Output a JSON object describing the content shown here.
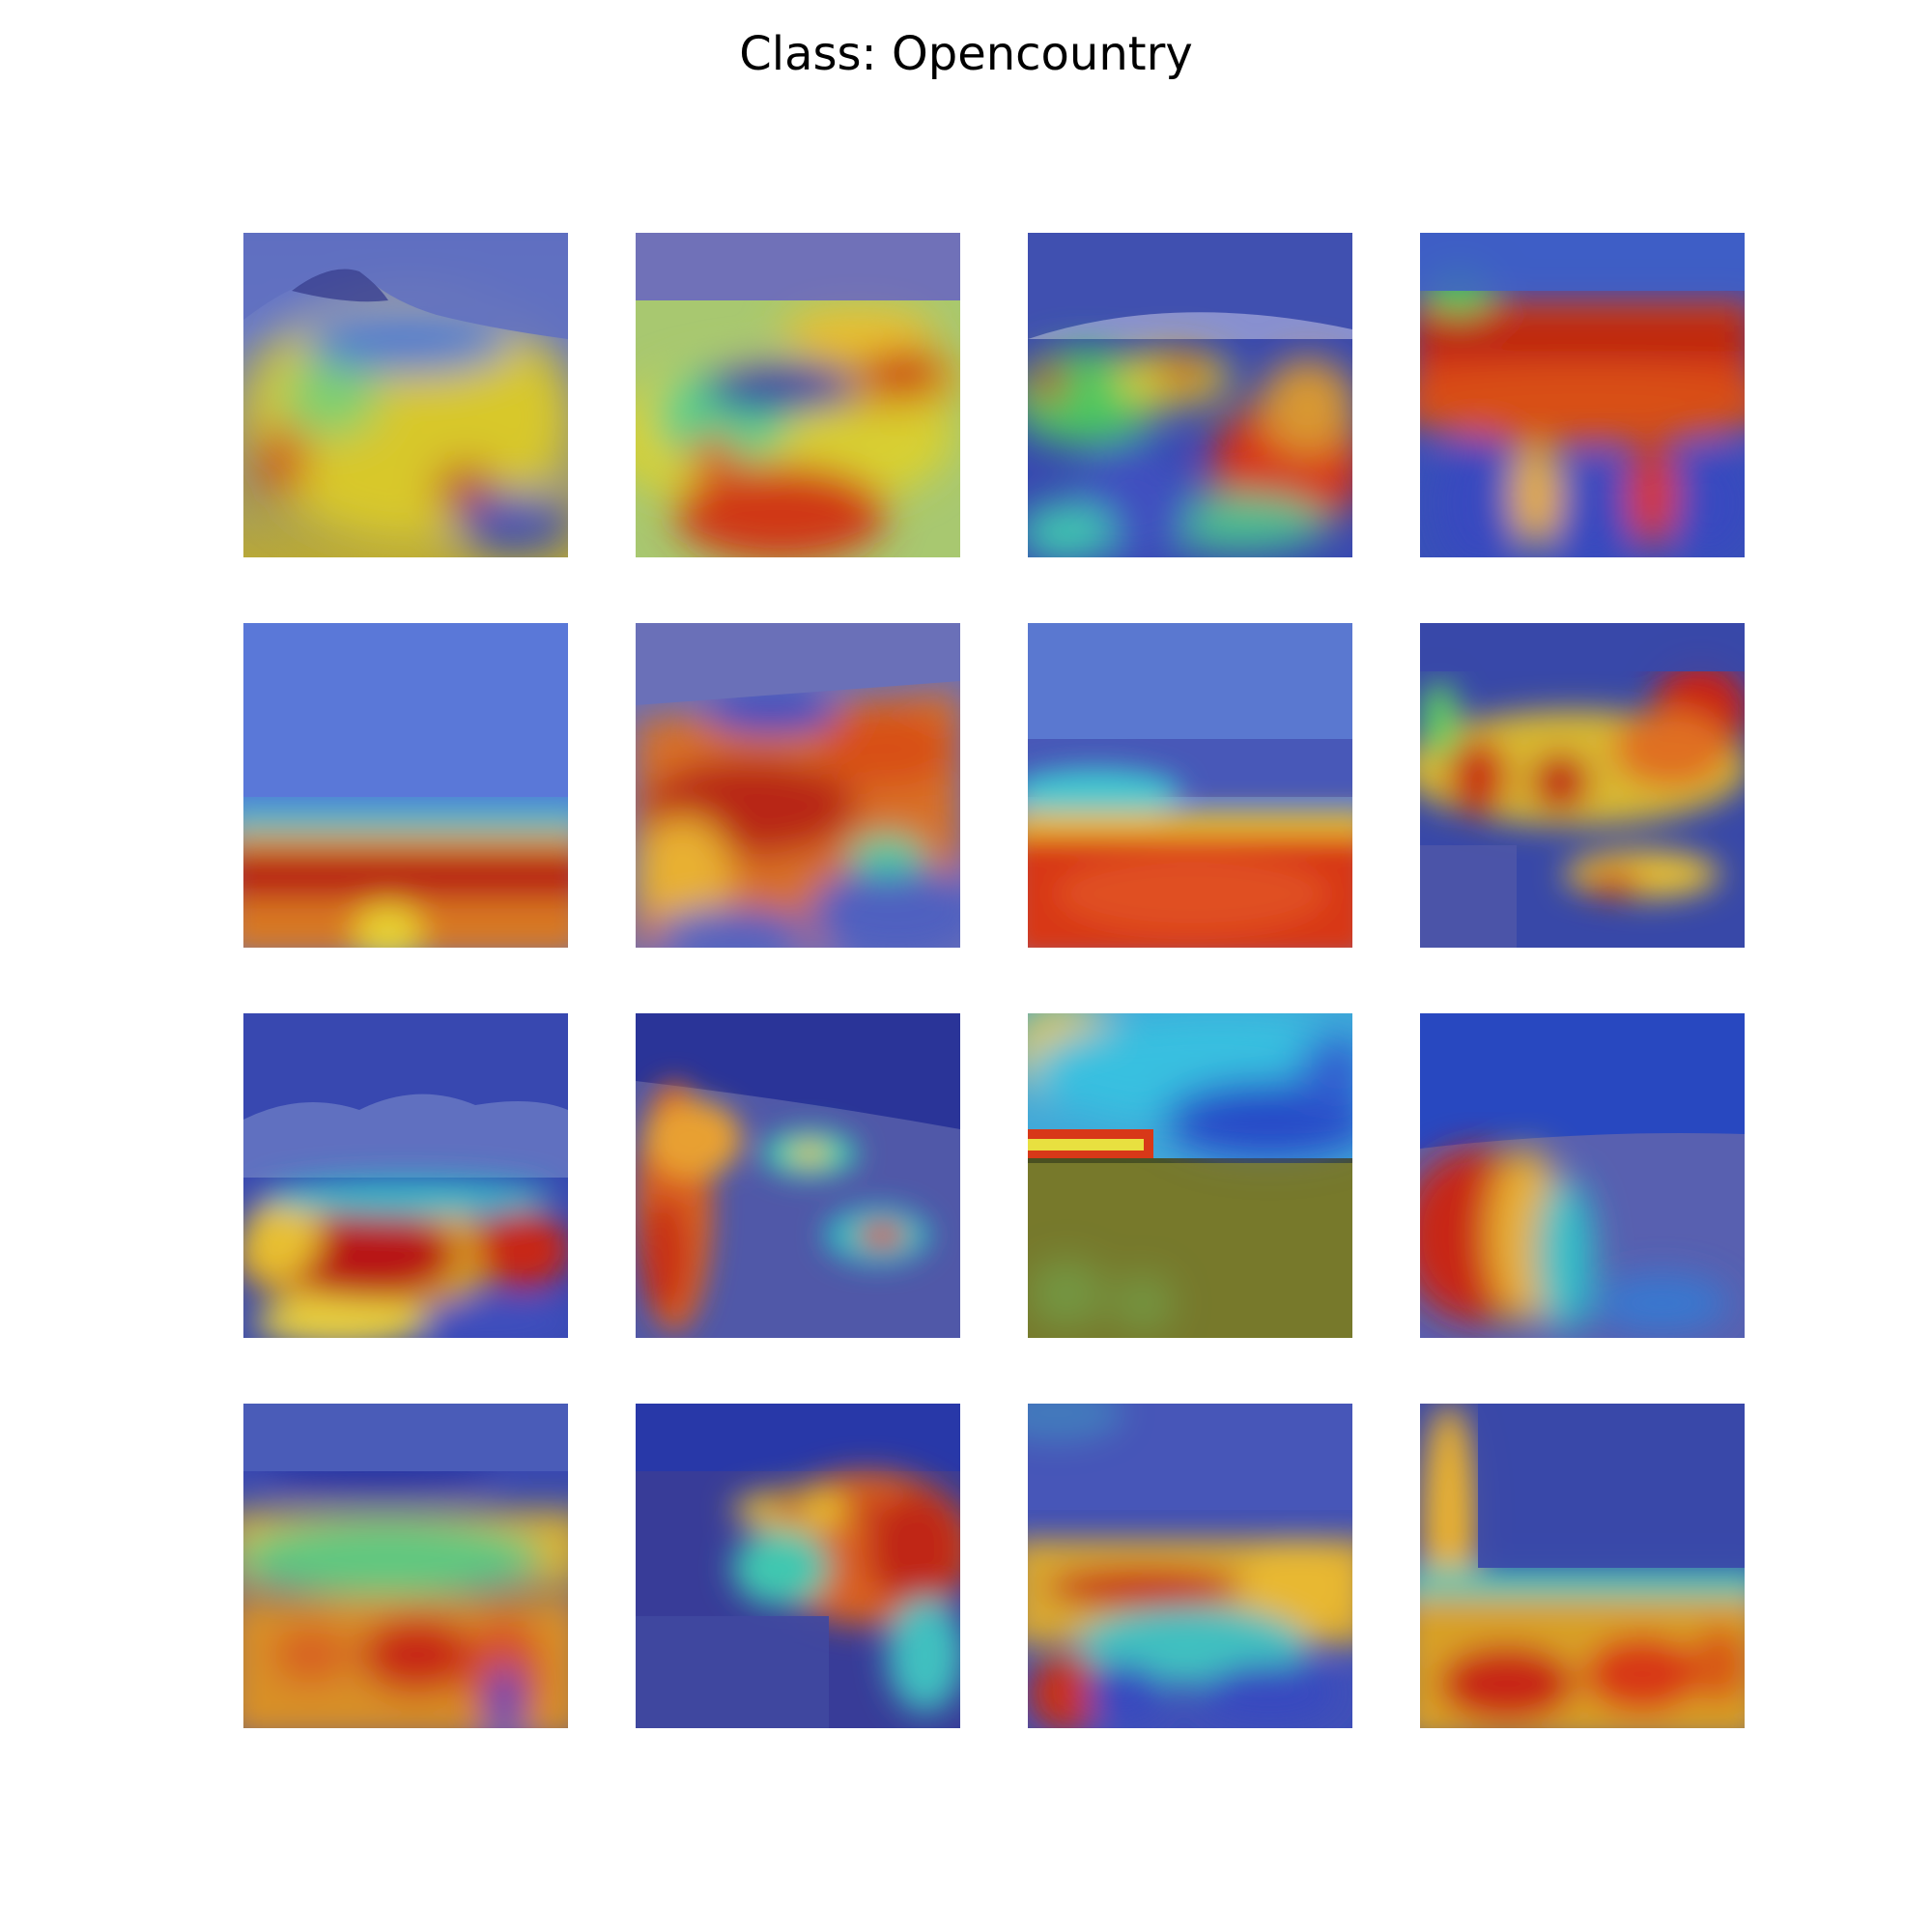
{
  "figure": {
    "title": "Class: Opencountry",
    "colormap": "jet",
    "overlay_colors": {
      "low": "#2430a8",
      "mid": "#33c9c9",
      "high": "#c81414"
    }
  },
  "tiles": [
    {
      "name": "heatmap-tile-r1c1"
    },
    {
      "name": "heatmap-tile-r1c2"
    },
    {
      "name": "heatmap-tile-r1c3"
    },
    {
      "name": "heatmap-tile-r1c4"
    },
    {
      "name": "heatmap-tile-r2c1"
    },
    {
      "name": "heatmap-tile-r2c2"
    },
    {
      "name": "heatmap-tile-r2c3"
    },
    {
      "name": "heatmap-tile-r2c4"
    },
    {
      "name": "heatmap-tile-r3c1"
    },
    {
      "name": "heatmap-tile-r3c2"
    },
    {
      "name": "heatmap-tile-r3c3"
    },
    {
      "name": "heatmap-tile-r3c4"
    },
    {
      "name": "heatmap-tile-r4c1"
    },
    {
      "name": "heatmap-tile-r4c2"
    },
    {
      "name": "heatmap-tile-r4c3"
    },
    {
      "name": "heatmap-tile-r4c4"
    }
  ]
}
